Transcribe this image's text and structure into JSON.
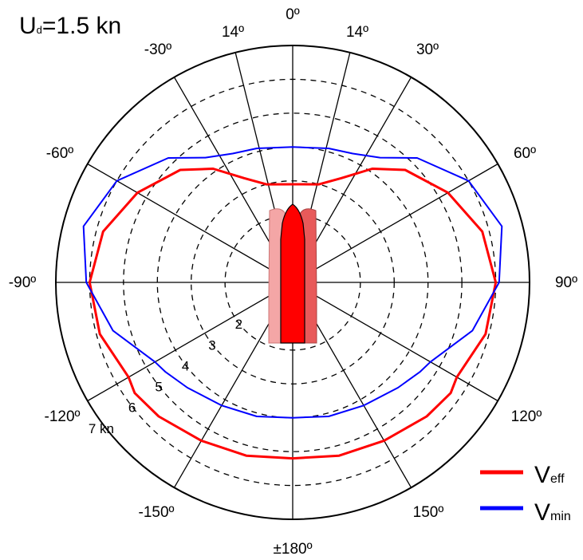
{
  "chart_data": {
    "type": "polar-line",
    "title_main": "U",
    "title_sub": "d",
    "title_rest": "=1.5 kn",
    "angle_labels": [
      {
        "angle": 0,
        "text": "0º"
      },
      {
        "angle": 30,
        "text": "30º"
      },
      {
        "angle": 60,
        "text": "60º"
      },
      {
        "angle": 90,
        "text": "90º"
      },
      {
        "angle": 120,
        "text": "120º"
      },
      {
        "angle": 150,
        "text": "150º"
      },
      {
        "angle": 180,
        "text": "±180º"
      },
      {
        "angle": -150,
        "text": "-150º"
      },
      {
        "angle": -120,
        "text": "-120º"
      },
      {
        "angle": -90,
        "text": "-90º"
      },
      {
        "angle": -60,
        "text": "-60º"
      },
      {
        "angle": -30,
        "text": "-30º"
      },
      {
        "angle": -14,
        "text": "14º"
      },
      {
        "angle": 14,
        "text": "14º"
      }
    ],
    "radial_lines_deg": [
      0,
      30,
      60,
      90,
      120,
      150,
      180,
      210,
      240,
      270,
      300,
      330,
      14,
      -14
    ],
    "ring_values": [
      2,
      3,
      4,
      5,
      6,
      7
    ],
    "ring_labels": [
      "2",
      "3",
      "4",
      "5",
      "6",
      "7 kn"
    ],
    "r_max": 7,
    "series": [
      {
        "name": "Veff",
        "name_main": "V",
        "name_sub": "eff",
        "color": "#ff0000",
        "angles": [
          0,
          15,
          25,
          35,
          45,
          60,
          75,
          90,
          105,
          120,
          125,
          135,
          150,
          165,
          180
        ],
        "values": [
          2.9,
          3.0,
          3.4,
          4.1,
          4.7,
          5.3,
          5.8,
          6.0,
          5.9,
          5.6,
          5.7,
          5.6,
          5.4,
          5.3,
          5.2
        ]
      },
      {
        "name": "Vmin",
        "name_main": "V",
        "name_sub": "min",
        "color": "#0000ff",
        "angles": [
          0,
          15,
          25,
          35,
          45,
          60,
          75,
          90,
          105,
          120,
          125,
          135,
          150,
          165,
          180
        ],
        "values": [
          4.0,
          4.1,
          4.2,
          4.5,
          5.2,
          6.0,
          6.4,
          6.1,
          5.5,
          4.7,
          4.6,
          4.4,
          4.2,
          4.1,
          4.0
        ]
      }
    ],
    "central_shape": {
      "color": "#ff0000",
      "side_color_light": "#f4a6a6",
      "side_color_mid": "#e85a5a"
    }
  }
}
